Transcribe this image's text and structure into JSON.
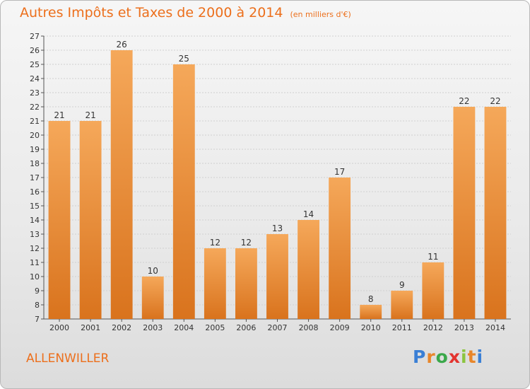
{
  "header": {
    "title": "Autres Impôts et Taxes de 2000 à 2014",
    "subtitle": "(en milliers d'€)"
  },
  "footer": {
    "commune": "ALLENWILLER",
    "logo": [
      "P",
      "r",
      "o",
      "x",
      "i",
      "t",
      "i"
    ]
  },
  "colors": {
    "accent": "#ec6f1c",
    "bar_top": "#f5a85a",
    "bar_bottom": "#d9731d",
    "logo": [
      "#3a7fd5",
      "#e8862a",
      "#3aa84a",
      "#e3342f",
      "#8bc53f",
      "#e8862a",
      "#3a7fd5"
    ]
  },
  "chart_data": {
    "type": "bar",
    "title": "Autres Impôts et Taxes de 2000 à 2014",
    "subtitle": "(en milliers d'€)",
    "categories": [
      "2000",
      "2001",
      "2002",
      "2003",
      "2004",
      "2005",
      "2006",
      "2007",
      "2008",
      "2009",
      "2010",
      "2011",
      "2012",
      "2013",
      "2014"
    ],
    "values": [
      21,
      21,
      26,
      10,
      25,
      12,
      12,
      13,
      14,
      17,
      8,
      9,
      11,
      22,
      22
    ],
    "ylim": [
      7,
      27
    ],
    "yticks": [
      7,
      8,
      9,
      10,
      11,
      12,
      13,
      14,
      15,
      16,
      17,
      18,
      19,
      20,
      21,
      22,
      23,
      24,
      25,
      26,
      27
    ],
    "grid": true,
    "xlabel": "",
    "ylabel": ""
  }
}
